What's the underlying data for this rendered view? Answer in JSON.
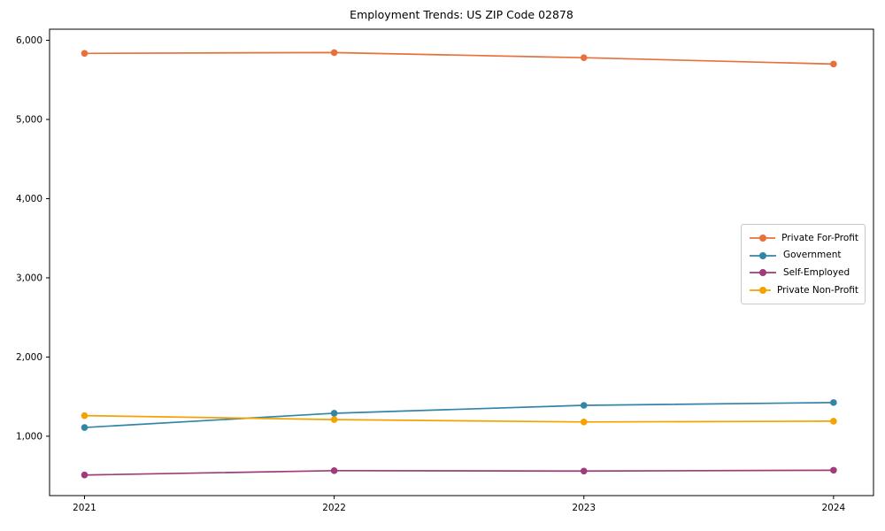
{
  "figure": {
    "background": "#ffffff",
    "spine_color": "#000000",
    "tick_color": "#000000",
    "legend": {
      "border_color": "#c9c9c9",
      "background": "#ffffff",
      "position": "center right"
    }
  },
  "chart_data": {
    "type": "line",
    "title": "Employment Trends: US ZIP Code 02878",
    "x": [
      2021,
      2022,
      2023,
      2024
    ],
    "x_tick_labels": [
      "2021",
      "2022",
      "2023",
      "2024"
    ],
    "y_ticks": [
      1000,
      2000,
      3000,
      4000,
      5000,
      6000
    ],
    "y_tick_labels": [
      "1,000",
      "2,000",
      "3,000",
      "4,000",
      "5,000",
      "6,000"
    ],
    "xlabel": "",
    "ylabel": "",
    "xlim": [
      2020.86,
      2024.16
    ],
    "ylim": [
      250,
      6140
    ],
    "grid": false,
    "marker": "circle",
    "legend_position": "center right",
    "series": [
      {
        "name": "Private For-Profit",
        "color": "#e8703a",
        "values": [
          5835,
          5845,
          5780,
          5700
        ]
      },
      {
        "name": "Government",
        "color": "#3385a6",
        "values": [
          1110,
          1290,
          1390,
          1425
        ]
      },
      {
        "name": "Self-Employed",
        "color": "#a03a78",
        "values": [
          510,
          565,
          560,
          570
        ]
      },
      {
        "name": "Private Non-Profit",
        "color": "#f5a201",
        "values": [
          1260,
          1210,
          1180,
          1190
        ]
      }
    ]
  }
}
